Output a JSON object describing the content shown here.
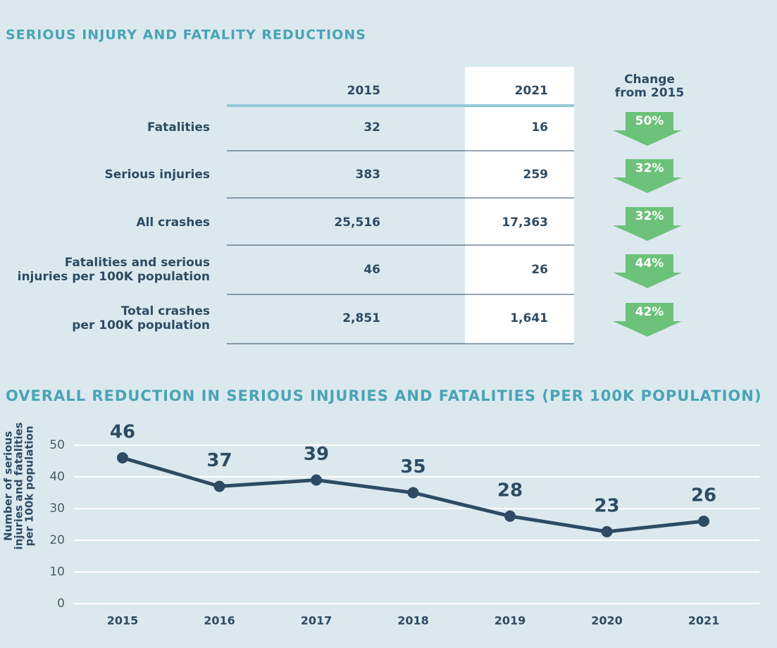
{
  "table": {
    "title": "SERIOUS INJURY AND FATALITY REDUCTIONS",
    "columns": [
      "2015",
      "2021"
    ],
    "change_header": [
      "Change",
      "from 2015"
    ],
    "rows": [
      {
        "label": [
          "Fatalities"
        ],
        "values": [
          "32",
          "16"
        ],
        "change": "50%"
      },
      {
        "label": [
          "Serious injuries"
        ],
        "values": [
          "383",
          "259"
        ],
        "change": "32%"
      },
      {
        "label": [
          "All crashes"
        ],
        "values": [
          "25,516",
          "17,363"
        ],
        "change": "32%"
      },
      {
        "label": [
          "Fatalities and serious",
          "injuries per 100K population"
        ],
        "values": [
          "46",
          "26"
        ],
        "change": "44%"
      },
      {
        "label": [
          "Total crashes",
          "per 100K population"
        ],
        "values": [
          "2,851",
          "1,641"
        ],
        "change": "42%"
      }
    ]
  },
  "chart_data": {
    "type": "line",
    "title": "OVERALL REDUCTION IN SERIOUS INJURIES AND FATALITIES (PER 100K POPULATION)",
    "y_label": [
      "Number of serious",
      "injuries and fatalities",
      "per 100k population"
    ],
    "categories": [
      "2015",
      "2016",
      "2017",
      "2018",
      "2019",
      "2020",
      "2021"
    ],
    "values": [
      46,
      37,
      39,
      35,
      27.6,
      22.7,
      26
    ],
    "value_labels": [
      "46",
      "37",
      "39",
      "35",
      "28",
      "23",
      "26"
    ],
    "color": "#2e4b63",
    "ylim": [
      0,
      50
    ],
    "yticks": [
      0,
      10,
      20,
      30,
      40,
      50
    ],
    "grid": true
  }
}
